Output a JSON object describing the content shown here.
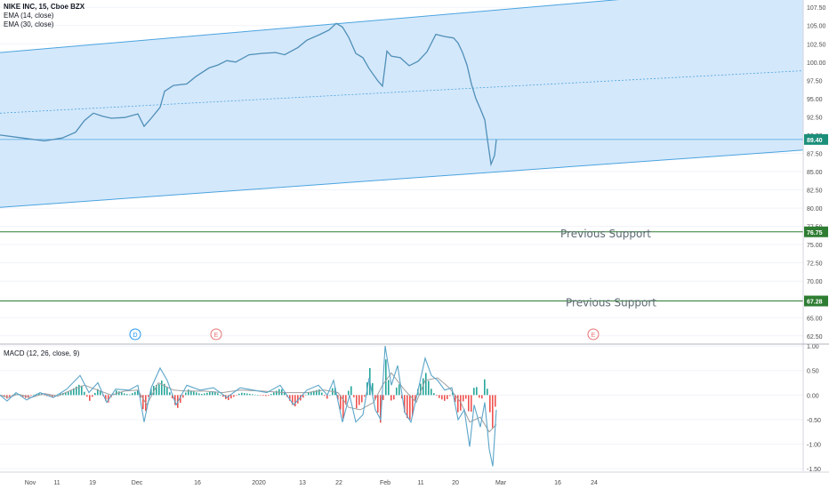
{
  "header": {
    "symbol_line": "NIKE INC, 15, Cboe BZX",
    "indicators": [
      "EMA (14, close)",
      "EMA (30, close)"
    ]
  },
  "macd_pane": {
    "title": "MACD (12, 26, close, 9)"
  },
  "annotations": {
    "support_label": "Previous Support"
  },
  "event_markers": [
    "D",
    "E",
    "E"
  ],
  "colors": {
    "channel_line": "#4aa3e0",
    "channel_fill": "#cfe6fb",
    "price_line": "#4f8fb8",
    "support_line": "#2e7d32",
    "support_badge": "#2e7d32",
    "last_price_badge": "#1b8f7a",
    "macd_line": "#5ba5c9",
    "signal_line": "#9e9e9e",
    "hist_up": "#26a69a",
    "hist_down": "#ef5350",
    "dividend_marker": "#2196f3",
    "earnings_marker": "#e57373"
  },
  "chart_data": [
    {
      "type": "line",
      "title": "NIKE INC, 15, Cboe BZX",
      "y_axis_ticks": [
        "107.50",
        "105.00",
        "102.50",
        "100.00",
        "97.50",
        "95.00",
        "92.50",
        "90.00",
        "87.50",
        "85.00",
        "82.50",
        "80.00",
        "77.50",
        "75.00",
        "72.50",
        "70.00",
        "67.50",
        "65.00",
        "62.50"
      ],
      "ylim": [
        61.5,
        108.5
      ],
      "x_axis_ticks": [
        "Nov",
        "11",
        "19",
        "Dec",
        "16",
        "2020",
        "13",
        "22",
        "Feb",
        "11",
        "20",
        "Mar",
        "16",
        "24"
      ],
      "series": [
        {
          "name": "EMA (14, close)",
          "points": [
            [
              0,
              90.0
            ],
            [
              25,
              89.6
            ],
            [
              50,
              89.2
            ],
            [
              70,
              89.6
            ],
            [
              85,
              90.4
            ],
            [
              95,
              92.0
            ],
            [
              105,
              93.0
            ],
            [
              115,
              92.6
            ],
            [
              125,
              92.3
            ],
            [
              140,
              92.4
            ],
            [
              155,
              92.9
            ],
            [
              162,
              91.2
            ],
            [
              170,
              92.3
            ],
            [
              180,
              93.8
            ],
            [
              185,
              96.0
            ],
            [
              195,
              96.8
            ],
            [
              210,
              97.0
            ],
            [
              220,
              98.0
            ],
            [
              235,
              99.2
            ],
            [
              245,
              99.6
            ],
            [
              255,
              100.2
            ],
            [
              265,
              100.0
            ],
            [
              280,
              101.0
            ],
            [
              295,
              101.2
            ],
            [
              310,
              101.3
            ],
            [
              320,
              101.0
            ],
            [
              335,
              102.0
            ],
            [
              345,
              103.0
            ],
            [
              360,
              103.8
            ],
            [
              370,
              104.4
            ],
            [
              378,
              105.3
            ],
            [
              385,
              104.8
            ],
            [
              392,
              103.4
            ],
            [
              400,
              101.2
            ],
            [
              408,
              100.6
            ],
            [
              415,
              99.1
            ],
            [
              425,
              97.4
            ],
            [
              430,
              96.7
            ],
            [
              435,
              101.5
            ],
            [
              440,
              100.8
            ],
            [
              450,
              100.6
            ],
            [
              460,
              99.5
            ],
            [
              470,
              100.1
            ],
            [
              480,
              101.4
            ],
            [
              490,
              103.8
            ],
            [
              500,
              103.5
            ],
            [
              510,
              103.3
            ],
            [
              515,
              102.6
            ],
            [
              520,
              101.3
            ],
            [
              525,
              99.6
            ],
            [
              530,
              97.0
            ],
            [
              535,
              95.0
            ],
            [
              540,
              93.6
            ],
            [
              545,
              92.1
            ],
            [
              548,
              89.4
            ],
            [
              552,
              86.0
            ],
            [
              556,
              87.2
            ],
            [
              558,
              89.4
            ]
          ]
        }
      ],
      "channel": {
        "upper": [
          [
            0,
            101.3
          ],
          [
            700,
            108.6
          ]
        ],
        "middle": [
          [
            0,
            93.0
          ],
          [
            932,
            99.0
          ]
        ],
        "lower": [
          [
            0,
            80.1
          ],
          [
            932,
            88.2
          ]
        ]
      },
      "horizontal_lines": [
        {
          "value": 89.4,
          "label": "89.40"
        },
        {
          "value": 76.75,
          "label": "76.75"
        },
        {
          "value": 67.28,
          "label": "67.28"
        }
      ]
    },
    {
      "type": "line",
      "title": "MACD (12, 26, close, 9)",
      "y_axis_ticks": [
        "1.00",
        "0.50",
        "0.00",
        "-0.50",
        "-1.00",
        "-1.50"
      ],
      "ylim": [
        -1.55,
        1.02
      ],
      "series": [
        {
          "name": "MACD",
          "points": [
            [
              0,
              0.0
            ],
            [
              8,
              -0.12
            ],
            [
              18,
              0.05
            ],
            [
              30,
              -0.1
            ],
            [
              45,
              0.05
            ],
            [
              60,
              -0.05
            ],
            [
              75,
              0.12
            ],
            [
              90,
              0.4
            ],
            [
              100,
              0.05
            ],
            [
              110,
              0.25
            ],
            [
              120,
              -0.15
            ],
            [
              130,
              0.12
            ],
            [
              145,
              0.1
            ],
            [
              155,
              0.2
            ],
            [
              162,
              -0.55
            ],
            [
              170,
              0.15
            ],
            [
              180,
              0.55
            ],
            [
              188,
              0.3
            ],
            [
              198,
              -0.2
            ],
            [
              210,
              0.2
            ],
            [
              225,
              0.1
            ],
            [
              240,
              0.15
            ],
            [
              255,
              -0.05
            ],
            [
              270,
              0.15
            ],
            [
              285,
              0.1
            ],
            [
              300,
              0.05
            ],
            [
              315,
              0.2
            ],
            [
              330,
              -0.2
            ],
            [
              345,
              0.1
            ],
            [
              358,
              0.2
            ],
            [
              368,
              0.0
            ],
            [
              375,
              0.3
            ],
            [
              385,
              -0.55
            ],
            [
              393,
              0.0
            ],
            [
              400,
              -0.55
            ],
            [
              408,
              -0.4
            ],
            [
              415,
              0.35
            ],
            [
              422,
              -0.3
            ],
            [
              428,
              -0.5
            ],
            [
              433,
              1.0
            ],
            [
              440,
              0.2
            ],
            [
              447,
              0.6
            ],
            [
              455,
              -0.35
            ],
            [
              462,
              -0.55
            ],
            [
              470,
              0.1
            ],
            [
              478,
              0.75
            ],
            [
              485,
              0.4
            ],
            [
              492,
              0.3
            ],
            [
              500,
              0.1
            ],
            [
              508,
              0.15
            ],
            [
              515,
              -0.5
            ],
            [
              522,
              -0.3
            ],
            [
              528,
              -1.05
            ],
            [
              533,
              -0.2
            ],
            [
              540,
              -0.65
            ],
            [
              545,
              -0.15
            ],
            [
              550,
              -1.1
            ],
            [
              554,
              -1.45
            ],
            [
              558,
              -0.3
            ]
          ]
        },
        {
          "name": "Signal",
          "points": [
            [
              0,
              0.0
            ],
            [
              10,
              -0.05
            ],
            [
              20,
              0.02
            ],
            [
              35,
              -0.05
            ],
            [
              50,
              0.03
            ],
            [
              65,
              -0.02
            ],
            [
              80,
              0.1
            ],
            [
              95,
              0.2
            ],
            [
              110,
              0.1
            ],
            [
              125,
              0.0
            ],
            [
              140,
              0.08
            ],
            [
              155,
              0.1
            ],
            [
              165,
              -0.2
            ],
            [
              178,
              0.25
            ],
            [
              195,
              0.1
            ],
            [
              210,
              0.08
            ],
            [
              230,
              0.08
            ],
            [
              250,
              0.05
            ],
            [
              270,
              0.1
            ],
            [
              295,
              0.08
            ],
            [
              320,
              0.05
            ],
            [
              345,
              0.05
            ],
            [
              365,
              0.1
            ],
            [
              380,
              0.05
            ],
            [
              392,
              -0.25
            ],
            [
              405,
              -0.3
            ],
            [
              420,
              -0.15
            ],
            [
              430,
              0.2
            ],
            [
              440,
              0.45
            ],
            [
              455,
              0.1
            ],
            [
              468,
              -0.15
            ],
            [
              478,
              0.3
            ],
            [
              492,
              0.35
            ],
            [
              505,
              0.15
            ],
            [
              518,
              -0.15
            ],
            [
              528,
              -0.55
            ],
            [
              540,
              -0.45
            ],
            [
              550,
              -0.75
            ],
            [
              558,
              -0.6
            ]
          ]
        }
      ]
    }
  ]
}
